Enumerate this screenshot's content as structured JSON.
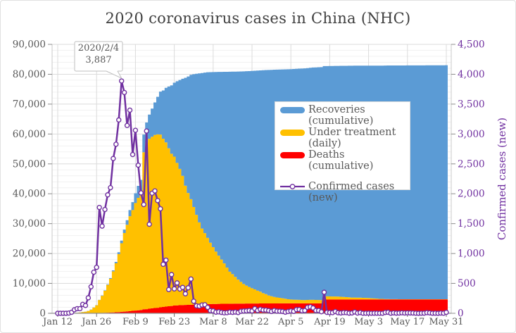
{
  "colors": {
    "recoveries": "#5B9BD5",
    "under_treatment": "#FFC000",
    "deaths": "#FF0000",
    "confirmed_line": "#7030A0",
    "grid_major": "#DBDBDB",
    "grid_minor": "#F1F1F1",
    "axis_line": "#8E8E8E",
    "side_axis_line": "#C9C9C9",
    "tick_mark": "#8C8C8C",
    "axis_text": "#595959",
    "right_axis_text": "#7030A0",
    "title_text": "#3F3F3F",
    "annotation_border": "#BFBFBF"
  },
  "legend": {
    "items": [
      {
        "key": "recoveries_cumulative",
        "swatch": "area",
        "color": "#5B9BD5",
        "label": "Recoveries\n(cumulative)"
      },
      {
        "key": "under_treatment_daily",
        "swatch": "area",
        "color": "#FFC000",
        "label": "Under treatment\n(daily)"
      },
      {
        "key": "deaths_cumulative",
        "swatch": "area",
        "color": "#FF0000",
        "label": "Deaths (cumulative)"
      },
      {
        "key": "confirmed_new",
        "swatch": "line",
        "color": "#7030A0",
        "label": "Confirmed cases\n(new)"
      }
    ]
  },
  "chart_data": {
    "type": "area",
    "subtype": "stacked-step-area-with-line",
    "title": "2020 coronavirus cases in China (NHC)",
    "grid": true,
    "legend_position": "center-right",
    "x": [
      "1/12",
      "1/13",
      "1/14",
      "1/15",
      "1/16",
      "1/17",
      "1/18",
      "1/19",
      "1/20",
      "1/21",
      "1/22",
      "1/23",
      "1/24",
      "1/25",
      "1/26",
      "1/27",
      "1/28",
      "1/29",
      "1/30",
      "1/31",
      "2/1",
      "2/2",
      "2/3",
      "2/4",
      "2/5",
      "2/6",
      "2/7",
      "2/8",
      "2/9",
      "2/10",
      "2/11",
      "2/12",
      "2/13",
      "2/14",
      "2/15",
      "2/16",
      "2/17",
      "2/18",
      "2/19",
      "2/20",
      "2/21",
      "2/22",
      "2/23",
      "2/24",
      "2/25",
      "2/26",
      "2/27",
      "2/28",
      "2/29",
      "3/1",
      "3/2",
      "3/3",
      "3/4",
      "3/5",
      "3/6",
      "3/7",
      "3/8",
      "3/9",
      "3/10",
      "3/11",
      "3/12",
      "3/13",
      "3/14",
      "3/15",
      "3/16",
      "3/17",
      "3/18",
      "3/19",
      "3/20",
      "3/21",
      "3/22",
      "3/23",
      "3/24",
      "3/25",
      "3/26",
      "3/27",
      "3/28",
      "3/29",
      "3/30",
      "3/31",
      "4/1",
      "4/2",
      "4/3",
      "4/4",
      "4/5",
      "4/6",
      "4/7",
      "4/8",
      "4/9",
      "4/10",
      "4/11",
      "4/12",
      "4/13",
      "4/14",
      "4/15",
      "4/16",
      "4/17",
      "4/18",
      "4/19",
      "4/20",
      "4/21",
      "4/22",
      "4/23",
      "4/24",
      "4/25",
      "4/26",
      "4/27",
      "4/28",
      "4/29",
      "4/30",
      "5/1",
      "5/2",
      "5/3",
      "5/4",
      "5/5",
      "5/6",
      "5/7",
      "5/8",
      "5/9",
      "5/10",
      "5/11",
      "5/12",
      "5/13",
      "5/14",
      "5/15",
      "5/16",
      "5/17",
      "5/18",
      "5/19",
      "5/20",
      "5/21",
      "5/22",
      "5/23",
      "5/24",
      "5/25",
      "5/26",
      "5/27",
      "5/28",
      "5/29",
      "5/30",
      "5/31"
    ],
    "x_tick_indices": [
      0,
      14,
      28,
      42,
      56,
      70,
      84,
      98,
      112,
      126,
      140
    ],
    "x_tick_labels": [
      "Jan 12",
      "Jan 26",
      "Feb 9",
      "Feb 23",
      "Mar 8",
      "Mar 22",
      "Apr 5",
      "Apr 19",
      "May 3",
      "May 17",
      "May 31"
    ],
    "y_left": {
      "min": 0,
      "max": 90000,
      "step": 10000,
      "minor_step": 2000
    },
    "y_right": {
      "min": 0,
      "max": 4500,
      "step": 500,
      "label": "Confirmed cases (new)"
    },
    "stack_order": [
      "deaths_cumulative",
      "under_treatment_daily",
      "recoveries_cumulative"
    ],
    "series": {
      "deaths_cumulative": {
        "label": "Deaths (cumulative)",
        "color": "#FF0000",
        "axis": "left",
        "render": "stacked-area",
        "values": [
          1,
          1,
          1,
          2,
          2,
          2,
          3,
          3,
          6,
          9,
          17,
          25,
          41,
          56,
          80,
          106,
          132,
          170,
          213,
          259,
          304,
          361,
          425,
          490,
          563,
          636,
          722,
          811,
          908,
          1016,
          1113,
          1367,
          1380,
          1523,
          1665,
          1770,
          1868,
          2004,
          2118,
          2236,
          2345,
          2442,
          2592,
          2663,
          2715,
          2744,
          2788,
          2835,
          2870,
          2912,
          2943,
          2981,
          3012,
          3042,
          3070,
          3097,
          3119,
          3136,
          3158,
          3169,
          3176,
          3189,
          3199,
          3213,
          3226,
          3237,
          3245,
          3248,
          3255,
          3261,
          3270,
          3277,
          3281,
          3287,
          3292,
          3295,
          3300,
          3304,
          3305,
          3312,
          3318,
          3322,
          3326,
          3329,
          3331,
          3331,
          3333,
          3335,
          3336,
          3339,
          3339,
          3341,
          3341,
          3342,
          3342,
          3342,
          4632,
          4632,
          4632,
          4632,
          4632,
          4632,
          4632,
          4632,
          4632,
          4633,
          4633,
          4633,
          4633,
          4633,
          4633,
          4633,
          4633,
          4633,
          4633,
          4633,
          4633,
          4633,
          4633,
          4633,
          4633,
          4633,
          4633,
          4633,
          4633,
          4634,
          4634,
          4634,
          4634,
          4634,
          4634,
          4634,
          4634,
          4634,
          4634,
          4634,
          4634,
          4634,
          4634,
          4634,
          4634
        ]
      },
      "under_treatment_daily": {
        "label": "Under treatment (daily)",
        "color": "#FFC000",
        "axis": "left",
        "render": "stacked-area",
        "values": [
          33,
          33,
          33,
          27,
          28,
          41,
          94,
          170,
          260,
          406,
          526,
          771,
          1208,
          1870,
          2613,
          4349,
          5739,
          7417,
          9308,
          11289,
          13748,
          16369,
          19381,
          22942,
          26302,
          28985,
          31774,
          33738,
          35982,
          37626,
          38800,
          52526,
          55748,
          56873,
          57416,
          57934,
          58016,
          57805,
          56303,
          54965,
          52887,
          50958,
          49824,
          47672,
          45604,
          43258,
          39919,
          37414,
          35329,
          32652,
          30004,
          27433,
          25352,
          23784,
          22177,
          20533,
          19016,
          17512,
          16145,
          14831,
          13526,
          12094,
          10734,
          9898,
          8976,
          8056,
          7263,
          6569,
          6013,
          5549,
          5120,
          4735,
          4287,
          3947,
          3460,
          3128,
          2691,
          2396,
          2161,
          2004,
          1863,
          1727,
          1558,
          1376,
          1299,
          1242,
          1190,
          1160,
          1116,
          1089,
          1138,
          1156,
          1170,
          1137,
          1107,
          1081,
          1058,
          1041,
          1031,
          1003,
          1005,
          959,
          915,
          838,
          801,
          723,
          648,
          647,
          619,
          599,
          557,
          531,
          481,
          395,
          339,
          295,
          207,
          208,
          148,
          141,
          115,
          104,
          101,
          91,
          89,
          86,
          82,
          85,
          83,
          87,
          84,
          82,
          79,
          83,
          81,
          79,
          73,
          70,
          66,
          63,
          76
        ]
      },
      "recoveries_cumulative": {
        "label": "Recoveries (cumulative)",
        "color": "#5B9BD5",
        "axis": "left",
        "render": "stacked-area",
        "values": [
          7,
          7,
          7,
          12,
          15,
          19,
          24,
          25,
          25,
          25,
          28,
          34,
          38,
          49,
          51,
          60,
          103,
          124,
          171,
          243,
          328,
          475,
          632,
          892,
          1153,
          1540,
          2050,
          2649,
          3281,
          3996,
          4740,
          5911,
          6723,
          8096,
          9419,
          10844,
          12552,
          14376,
          16155,
          18264,
          20659,
          22888,
          24734,
          27323,
          29745,
          32495,
          36117,
          39002,
          41625,
          44462,
          47204,
          49856,
          52045,
          53726,
          55404,
          57065,
          58600,
          60106,
          61475,
          62793,
          64111,
          65541,
          66911,
          67749,
          68679,
          69601,
          70420,
          71150,
          71740,
          72244,
          72703,
          73159,
          73650,
          74051,
          74588,
          74971,
          75448,
          75770,
          76052,
          76238,
          76408,
          76571,
          76755,
          76964,
          77078,
          77167,
          77279,
          77370,
          77455,
          77525,
          77575,
          77663,
          77738,
          77816,
          77892,
          77944,
          77029,
          77062,
          77084,
          77123,
          77151,
          77207,
          77257,
          77346,
          77394,
          77474,
          77555,
          77578,
          77610,
          77642,
          77685,
          77713,
          77766,
          77853,
          77911,
          77957,
          78046,
          78046,
          78120,
          78144,
          78171,
          78189,
          78195,
          78209,
          78219,
          78227,
          78238,
          78241,
          78244,
          78244,
          78249,
          78255,
          78261,
          78268,
          78277,
          78280,
          78288,
          78291,
          78299,
          78304,
          78307
        ]
      },
      "confirmed_new": {
        "label": "Confirmed cases (new)",
        "color": "#7030A0",
        "axis": "right",
        "render": "line-markers",
        "values": [
          0,
          0,
          0,
          0,
          4,
          17,
          59,
          77,
          77,
          149,
          131,
          259,
          444,
          688,
          769,
          1771,
          1459,
          1737,
          1982,
          2102,
          2590,
          2829,
          3235,
          3887,
          3694,
          3143,
          3399,
          2656,
          3062,
          2478,
          2015,
          1820,
          3050,
          1490,
          2009,
          2048,
          1886,
          1749,
          820,
          889,
          397,
          648,
          409,
          508,
          406,
          433,
          327,
          427,
          573,
          202,
          125,
          119,
          139,
          143,
          99,
          44,
          40,
          19,
          24,
          15,
          8,
          11,
          20,
          16,
          21,
          13,
          34,
          39,
          41,
          46,
          39,
          78,
          47,
          67,
          55,
          54,
          45,
          31,
          48,
          36,
          35,
          31,
          19,
          30,
          39,
          32,
          62,
          63,
          42,
          46,
          99,
          108,
          89,
          46,
          46,
          26,
          352,
          16,
          12,
          11,
          30,
          10,
          6,
          12,
          11,
          3,
          6,
          22,
          4,
          12,
          1,
          2,
          3,
          1,
          2,
          2,
          1,
          1,
          14,
          17,
          1,
          7,
          3,
          4,
          8,
          5,
          7,
          6,
          5,
          2,
          0,
          2,
          3,
          11,
          7,
          1,
          2,
          0,
          4,
          2,
          16
        ]
      }
    },
    "annotation": {
      "line1": "2020/2/4",
      "line2": "3,887",
      "series": "confirmed_new",
      "x_index": 23,
      "value": 3887
    }
  }
}
